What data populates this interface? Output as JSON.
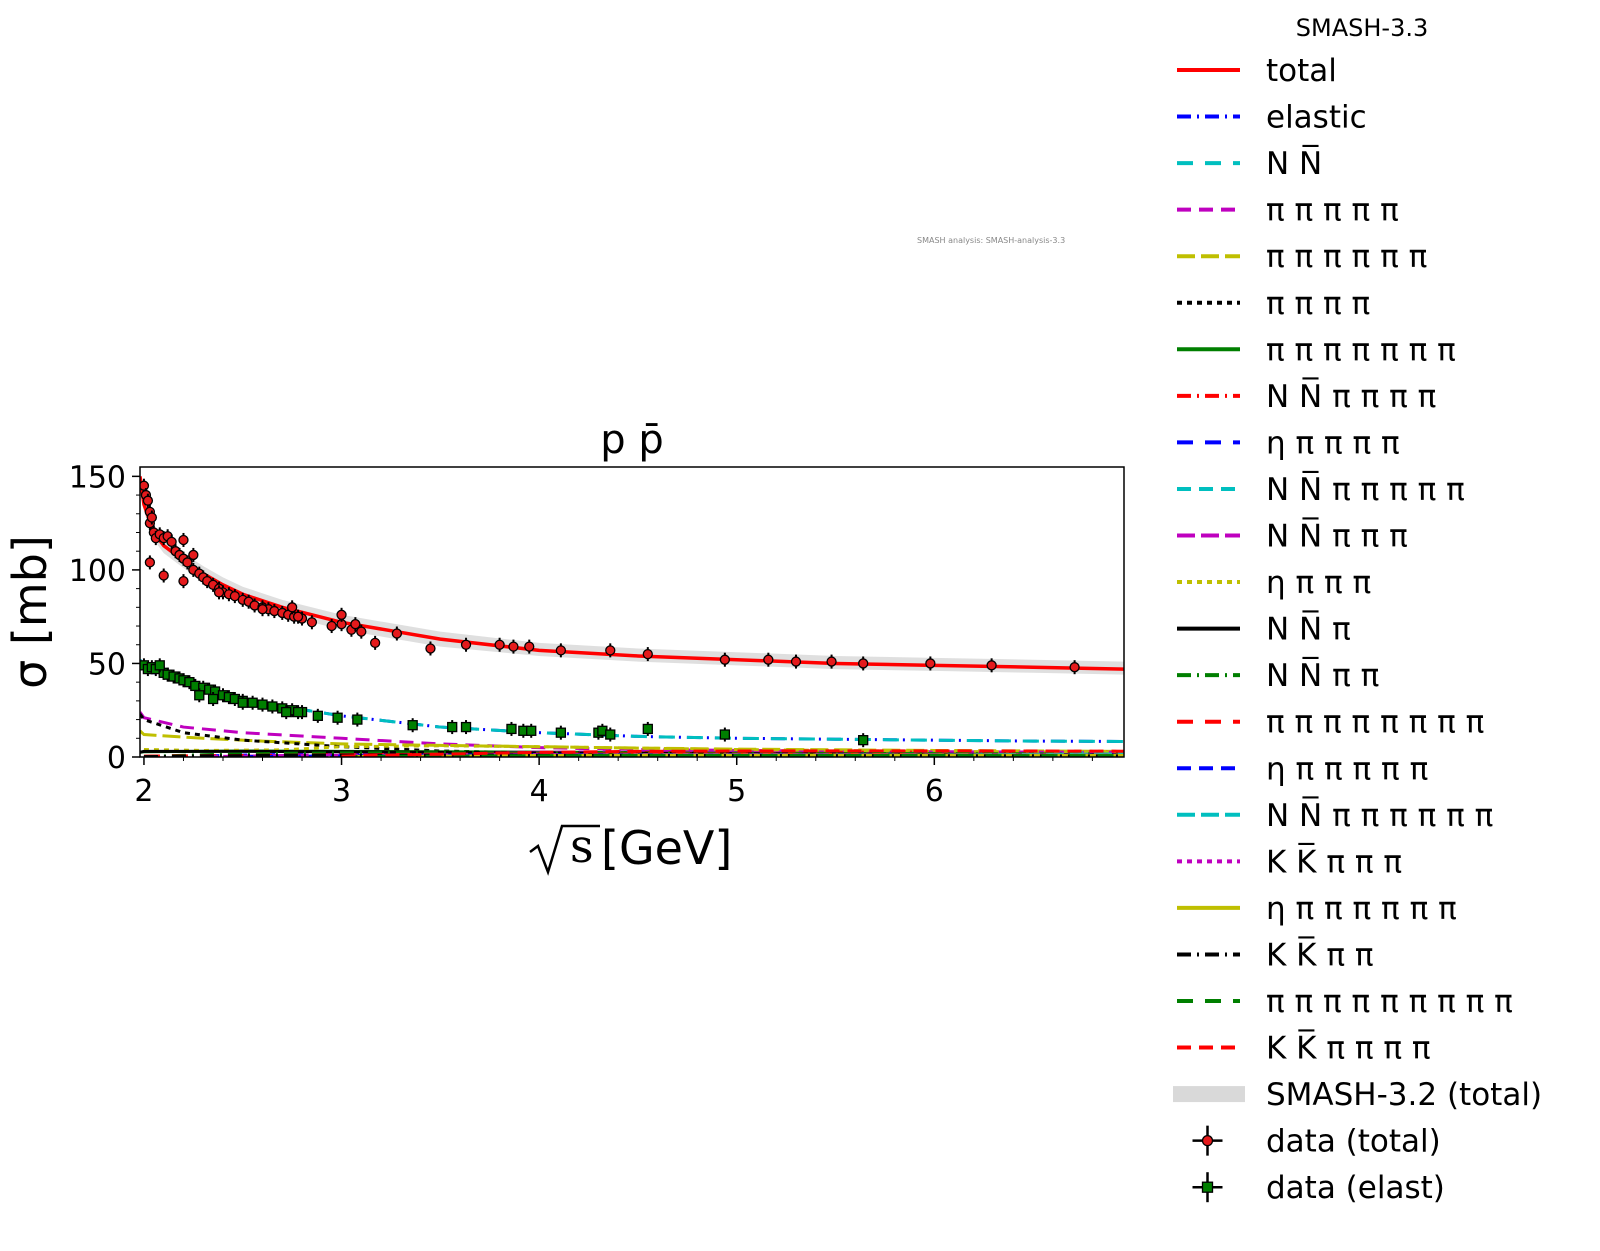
{
  "chart_data": {
    "type": "line",
    "title": "p p̄",
    "xlabel": "[GeV]",
    "xlabel_radicand": "s",
    "ylabel": "σ [mb]",
    "xlim": [
      1.98,
      6.96
    ],
    "ylim": [
      0,
      155
    ],
    "xticks": [
      2,
      3,
      4,
      5,
      6
    ],
    "yticks": [
      0,
      50,
      100,
      150
    ],
    "legend_title": "SMASH-3.3",
    "legend_position": "outside-right",
    "watermark": "SMASH analysis: SMASH-analysis-3.3",
    "series": [
      {
        "name": "total",
        "color": "#ff0000",
        "dash": "solid",
        "x": [
          1.98,
          2.0,
          2.05,
          2.1,
          2.2,
          2.3,
          2.4,
          2.5,
          2.7,
          3.0,
          3.5,
          4.0,
          4.5,
          5.0,
          5.5,
          6.0,
          6.5,
          6.96
        ],
        "y": [
          150,
          135,
          120,
          113,
          105,
          98,
          92,
          87,
          80,
          72,
          63,
          57,
          54,
          52,
          50,
          49,
          48,
          47
        ]
      },
      {
        "name": "elastic",
        "color": "#0000ff",
        "dash": "14,6,2,6",
        "x": [
          1.98,
          2.0,
          2.1,
          2.3,
          2.5,
          2.7,
          3.0,
          3.5,
          4.0,
          4.5,
          5.0,
          5.5,
          6.0,
          6.5,
          6.96
        ],
        "y": [
          52,
          47,
          43,
          36,
          31,
          27,
          22,
          16,
          13,
          11,
          10,
          9.5,
          9,
          8.5,
          8.3
        ]
      },
      {
        "name": "N N̅",
        "color": "#00bfbf",
        "dash": "16,12",
        "x": [
          1.98,
          2.0,
          2.1,
          2.3,
          2.5,
          2.7,
          3.0,
          3.5,
          4.0,
          4.5,
          5.0,
          5.5,
          6.0,
          6.5,
          6.96
        ],
        "y": [
          52,
          47,
          43,
          36,
          31,
          27,
          22,
          16,
          13,
          11,
          10,
          9.5,
          9,
          8.5,
          8.3
        ]
      },
      {
        "name": "π π π π π",
        "color": "#bf00bf",
        "dash": "14,8",
        "x": [
          1.98,
          2.0,
          2.2,
          2.5,
          3.0,
          3.5,
          4.0,
          4.5,
          5.0,
          6.0,
          6.96
        ],
        "y": [
          24,
          21,
          16,
          13,
          10,
          7,
          5,
          4,
          3.5,
          2.8,
          2.5
        ]
      },
      {
        "name": "π π π π π π",
        "color": "#bfbf00",
        "dash": "18,6",
        "x": [
          1.98,
          2.0,
          2.3,
          2.6,
          3.0,
          3.5,
          4.0,
          4.5,
          5.0,
          6.0,
          6.96
        ],
        "y": [
          14,
          12,
          10,
          8.5,
          7,
          6.2,
          5.5,
          4.8,
          4.2,
          3.5,
          3
        ]
      },
      {
        "name": "π π π π",
        "color": "#000000",
        "dash": "5,5",
        "x": [
          1.98,
          2.0,
          2.2,
          2.5,
          3.0,
          3.5,
          4.0,
          4.5,
          5.0,
          6.0,
          6.96
        ],
        "y": [
          23,
          20,
          13,
          9,
          5.5,
          3.2,
          2.2,
          1.8,
          1.5,
          1.2,
          1.0
        ]
      },
      {
        "name": "π π π π π π π",
        "color": "#007f00",
        "dash": "solid",
        "x": [
          1.98,
          2.0,
          2.5,
          3.0,
          3.5,
          4.0,
          4.5,
          5.0,
          6.0,
          6.96
        ],
        "y": [
          2.5,
          2.8,
          3.2,
          3.0,
          2.8,
          2.6,
          2.4,
          2.2,
          1.9,
          1.7
        ]
      },
      {
        "name": "N N̅ π π π π",
        "color": "#ff0000",
        "dash": "14,6,2,6",
        "x": [
          2.8,
          3.0,
          3.5,
          4.0,
          4.5,
          5.0,
          6.0,
          6.96
        ],
        "y": [
          0.2,
          0.6,
          1.4,
          2.0,
          2.3,
          2.5,
          2.6,
          2.6
        ]
      },
      {
        "name": "η π π π π",
        "color": "#0000ff",
        "dash": "16,12",
        "x": [
          2.3,
          2.5,
          3.0,
          3.5,
          4.0,
          4.5,
          5.0,
          6.0,
          6.96
        ],
        "y": [
          0.5,
          1.0,
          1.8,
          2.0,
          2.0,
          1.9,
          1.8,
          1.6,
          1.4
        ]
      },
      {
        "name": "N N̅ π π π π π",
        "color": "#00bfbf",
        "dash": "14,8",
        "x": [
          3.5,
          4.0,
          4.5,
          5.0,
          6.0,
          6.96
        ],
        "y": [
          0.1,
          0.5,
          1.0,
          1.4,
          2.0,
          2.4
        ]
      },
      {
        "name": "N N̅ π π π",
        "color": "#bf00bf",
        "dash": "18,6",
        "x": [
          2.5,
          3.0,
          3.5,
          4.0,
          4.5,
          5.0,
          6.0,
          6.96
        ],
        "y": [
          0.4,
          1.4,
          2.2,
          2.6,
          2.7,
          2.7,
          2.6,
          2.5
        ]
      },
      {
        "name": "η π π π",
        "color": "#bfbf00",
        "dash": "5,5",
        "x": [
          2.0,
          2.3,
          2.7,
          3.0,
          3.5,
          4.0,
          5.0,
          6.0,
          6.96
        ],
        "y": [
          4,
          3.5,
          3.8,
          5.5,
          6,
          5.5,
          4,
          3,
          2.5
        ]
      },
      {
        "name": "N N̅ π",
        "color": "#000000",
        "dash": "solid",
        "x": [
          1.98,
          2.0,
          2.5,
          3.0,
          3.5,
          4.0,
          5.0,
          6.0,
          6.96
        ],
        "y": [
          2.5,
          3.0,
          3.0,
          2.8,
          2.5,
          2.2,
          1.8,
          1.5,
          1.3
        ]
      },
      {
        "name": "N N̅ π π",
        "color": "#007f00",
        "dash": "14,6,2,6",
        "x": [
          2.0,
          2.3,
          2.7,
          3.0,
          3.5,
          4.0,
          5.0,
          6.0,
          6.96
        ],
        "y": [
          0.3,
          1.2,
          2.0,
          2.2,
          2.3,
          2.2,
          2.0,
          1.8,
          1.6
        ]
      },
      {
        "name": "π π π π π π π π",
        "color": "#ff0000",
        "dash": "16,12",
        "x": [
          2.0,
          2.5,
          3.0,
          3.5,
          4.0,
          4.5,
          5.0,
          5.5,
          6.0,
          6.5,
          6.96
        ],
        "y": [
          0.5,
          0.8,
          1.2,
          1.5,
          1.6,
          1.6,
          1.5,
          1.4,
          1.3,
          1.2,
          1.1
        ]
      },
      {
        "name": "η π π π π π",
        "color": "#0000ff",
        "dash": "14,8",
        "x": [
          2.5,
          3.0,
          3.5,
          4.0,
          4.5,
          5.0,
          6.0,
          6.96
        ],
        "y": [
          0.2,
          0.6,
          1.0,
          1.2,
          1.3,
          1.3,
          1.2,
          1.1
        ]
      },
      {
        "name": "N N̅ π π π π π π",
        "color": "#00bfbf",
        "dash": "18,6",
        "x": [
          4.5,
          5.0,
          5.5,
          6.0,
          6.5,
          6.96
        ],
        "y": [
          0.1,
          0.4,
          0.8,
          1.1,
          1.4,
          1.6
        ]
      },
      {
        "name": "K K̅ π π π",
        "color": "#bf00bf",
        "dash": "5,5",
        "x": [
          2.3,
          2.7,
          3.0,
          3.5,
          4.0,
          4.5,
          5.0,
          6.0,
          6.96
        ],
        "y": [
          0.2,
          0.6,
          0.9,
          1.2,
          1.3,
          1.3,
          1.2,
          1.1,
          1.0
        ]
      },
      {
        "name": "η π π π π π π",
        "color": "#bfbf00",
        "dash": "solid",
        "x": [
          3.0,
          3.5,
          4.0,
          4.5,
          5.0,
          6.0,
          6.96
        ],
        "y": [
          0.2,
          0.5,
          0.8,
          1.0,
          1.0,
          1.0,
          0.9
        ]
      },
      {
        "name": "K K̅ π π",
        "color": "#000000",
        "dash": "14,6,2,6",
        "x": [
          2.0,
          2.3,
          2.7,
          3.0,
          3.5,
          4.0,
          5.0,
          6.0,
          6.96
        ],
        "y": [
          0.2,
          0.6,
          0.9,
          1.0,
          1.0,
          0.9,
          0.8,
          0.7,
          0.6
        ]
      },
      {
        "name": "π π π π π π π π π",
        "color": "#007f00",
        "dash": "16,12",
        "x": [
          3.0,
          3.5,
          4.0,
          4.5,
          5.0,
          6.0,
          6.96
        ],
        "y": [
          0.3,
          0.5,
          0.7,
          0.8,
          0.8,
          0.8,
          0.7
        ]
      },
      {
        "name": "K K̅ π π π π",
        "color": "#ff0000",
        "dash": "14,8",
        "x": [
          3.0,
          3.5,
          4.0,
          4.5,
          5.0,
          5.5,
          6.0,
          6.5,
          6.96
        ],
        "y": [
          0.5,
          1.5,
          2.5,
          3.0,
          3.2,
          3.3,
          3.3,
          3.2,
          3.1
        ]
      }
    ],
    "band": {
      "name": "SMASH-3.2 (total)",
      "color": "#d9d9d9",
      "x": [
        1.98,
        2.0,
        2.05,
        2.1,
        2.2,
        2.3,
        2.4,
        2.5,
        2.7,
        3.0,
        3.5,
        4.0,
        4.5,
        5.0,
        5.5,
        6.0,
        6.5,
        6.96
      ],
      "y_low": [
        147,
        131,
        116,
        109,
        101,
        94,
        88,
        83,
        76,
        68,
        59,
        54,
        51,
        49,
        47,
        46,
        45,
        44
      ],
      "y_high": [
        153,
        139,
        124,
        117,
        109,
        102,
        96,
        91,
        84,
        76,
        67,
        61,
        58,
        56,
        54,
        53,
        52,
        51
      ]
    },
    "scatter": [
      {
        "name": "data (total)",
        "color": "#e41a1c",
        "marker": "circle",
        "points": [
          [
            2.0,
            145
          ],
          [
            2.01,
            140
          ],
          [
            2.02,
            137
          ],
          [
            2.03,
            125
          ],
          [
            2.03,
            131
          ],
          [
            2.04,
            128
          ],
          [
            2.05,
            120
          ],
          [
            2.06,
            117
          ],
          [
            2.08,
            119
          ],
          [
            2.1,
            117
          ],
          [
            2.12,
            118
          ],
          [
            2.14,
            115
          ],
          [
            2.16,
            110
          ],
          [
            2.18,
            108
          ],
          [
            2.2,
            106
          ],
          [
            2.22,
            104
          ],
          [
            2.25,
            100
          ],
          [
            2.28,
            98
          ],
          [
            2.3,
            96
          ],
          [
            2.32,
            94
          ],
          [
            2.35,
            92
          ],
          [
            2.38,
            90
          ],
          [
            2.4,
            88
          ],
          [
            2.43,
            87
          ],
          [
            2.46,
            86
          ],
          [
            2.5,
            84
          ],
          [
            2.53,
            83
          ],
          [
            2.56,
            81
          ],
          [
            2.6,
            80
          ],
          [
            2.63,
            79
          ],
          [
            2.66,
            78
          ],
          [
            2.7,
            77
          ],
          [
            2.73,
            76
          ],
          [
            2.76,
            75
          ],
          [
            2.8,
            74
          ],
          [
            2.85,
            72
          ],
          [
            2.95,
            70
          ],
          [
            3.0,
            71
          ],
          [
            3.05,
            68
          ],
          [
            3.1,
            67
          ],
          [
            3.17,
            61
          ],
          [
            3.28,
            66
          ],
          [
            3.45,
            58
          ],
          [
            3.63,
            60
          ],
          [
            3.8,
            60
          ],
          [
            3.87,
            59
          ],
          [
            3.95,
            59
          ],
          [
            4.11,
            57
          ],
          [
            4.36,
            57
          ],
          [
            4.55,
            55
          ],
          [
            4.94,
            52
          ],
          [
            5.16,
            52
          ],
          [
            5.3,
            51
          ],
          [
            5.48,
            51
          ],
          [
            5.64,
            50
          ],
          [
            5.98,
            50
          ],
          [
            6.29,
            49
          ],
          [
            6.71,
            48
          ],
          [
            2.03,
            104
          ],
          [
            2.1,
            97
          ],
          [
            2.2,
            94
          ],
          [
            2.2,
            116
          ],
          [
            2.25,
            108
          ],
          [
            2.38,
            88
          ],
          [
            2.6,
            79
          ],
          [
            2.75,
            80
          ],
          [
            2.78,
            75
          ],
          [
            3.0,
            76
          ],
          [
            3.07,
            71
          ]
        ]
      },
      {
        "name": "data (elast)",
        "color": "#007f00",
        "marker": "square",
        "points": [
          [
            2.0,
            49
          ],
          [
            2.02,
            47
          ],
          [
            2.04,
            48
          ],
          [
            2.06,
            47
          ],
          [
            2.1,
            45
          ],
          [
            2.12,
            44
          ],
          [
            2.15,
            43
          ],
          [
            2.18,
            42
          ],
          [
            2.2,
            41
          ],
          [
            2.23,
            40
          ],
          [
            2.26,
            38
          ],
          [
            2.3,
            37
          ],
          [
            2.33,
            36
          ],
          [
            2.36,
            35
          ],
          [
            2.4,
            33
          ],
          [
            2.43,
            32
          ],
          [
            2.46,
            31
          ],
          [
            2.5,
            30
          ],
          [
            2.55,
            29
          ],
          [
            2.6,
            28
          ],
          [
            2.65,
            27
          ],
          [
            2.7,
            26
          ],
          [
            2.75,
            25
          ],
          [
            2.8,
            24
          ],
          [
            2.88,
            22
          ],
          [
            2.98,
            21
          ],
          [
            3.08,
            20
          ],
          [
            3.36,
            17
          ],
          [
            3.56,
            16
          ],
          [
            3.63,
            16
          ],
          [
            3.86,
            15
          ],
          [
            3.92,
            14
          ],
          [
            3.96,
            14
          ],
          [
            4.11,
            13
          ],
          [
            4.3,
            13
          ],
          [
            4.32,
            14
          ],
          [
            4.36,
            12
          ],
          [
            4.55,
            15
          ],
          [
            4.94,
            12
          ],
          [
            5.64,
            9
          ],
          [
            2.08,
            49
          ],
          [
            2.28,
            33
          ],
          [
            2.35,
            31
          ],
          [
            2.5,
            29
          ],
          [
            2.72,
            24
          ],
          [
            2.78,
            24
          ]
        ]
      }
    ]
  }
}
